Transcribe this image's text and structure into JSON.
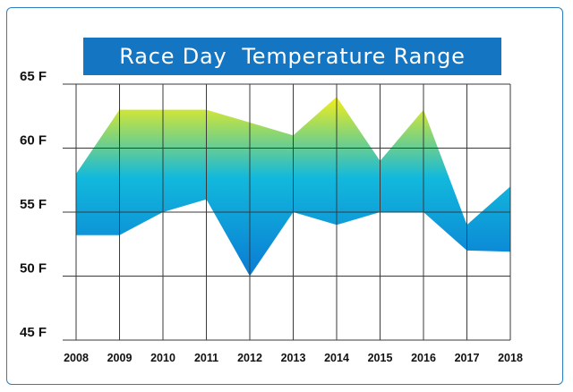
{
  "chart_data": {
    "type": "area",
    "title": "Race Day  Temperature Range",
    "xlabel": "",
    "ylabel": "",
    "x": [
      "2008",
      "2009",
      "2010",
      "2011",
      "2012",
      "2013",
      "2014",
      "2015",
      "2016",
      "2017",
      "2018"
    ],
    "series": [
      {
        "values": [
          53.2,
          53.2,
          55,
          56,
          50,
          55,
          54,
          55,
          55,
          52,
          51.9
        ]
      },
      {
        "values": [
          58,
          63,
          63,
          63,
          62,
          61,
          64,
          59,
          63,
          54,
          57
        ]
      }
    ],
    "ylim": [
      45,
      65
    ],
    "yticks": [
      45,
      50,
      55,
      60,
      65
    ],
    "ytick_labels": [
      "45 F",
      "50 F",
      "55 F",
      "60 F",
      "65 F"
    ],
    "grid": true,
    "colors": {
      "band_top": "#f2ee1a",
      "band_mid": "#12b9dc",
      "band_bottom": "#0a7bd4",
      "title_bg": "#1475c2",
      "border": "#2a7fc1"
    }
  }
}
